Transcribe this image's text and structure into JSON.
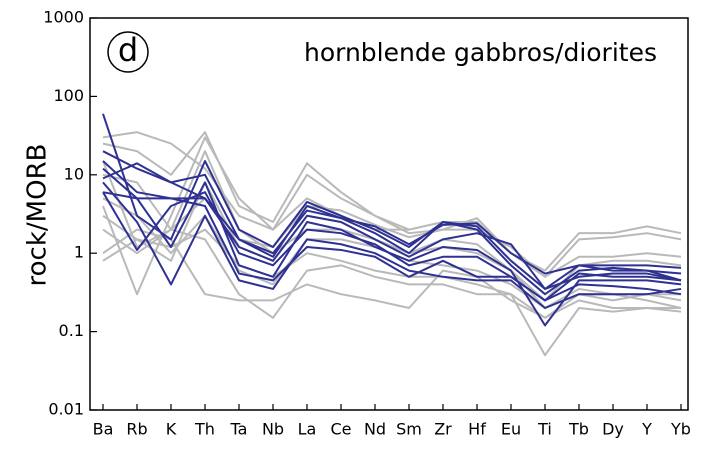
{
  "chart_data": {
    "type": "line",
    "title": "hornblende gabbros/diorites",
    "annotation": "d",
    "y_label": "rock/MORB",
    "yscale": "log",
    "ylim": [
      0.01,
      1000
    ],
    "yticks": [
      0.01,
      0.1,
      1,
      10,
      100,
      1000
    ],
    "categories": [
      "Ba",
      "Rb",
      "K",
      "Th",
      "Ta",
      "Nb",
      "La",
      "Ce",
      "Nd",
      "Sm",
      "Zr",
      "Hf",
      "Eu",
      "Ti",
      "Tb",
      "Dy",
      "Y",
      "Yb"
    ],
    "series": [
      {
        "color": "#b9b9b9",
        "values": [
          30,
          35,
          25,
          12,
          3,
          2,
          10,
          5,
          3,
          2,
          2.5,
          2.5,
          1,
          0.5,
          1.5,
          1.6,
          1.8,
          1.5
        ]
      },
      {
        "color": "#b9b9b9",
        "values": [
          25,
          20,
          10,
          35,
          4,
          2.5,
          14,
          6,
          3,
          1.8,
          2,
          2.8,
          1,
          0.6,
          1.8,
          1.8,
          2.2,
          1.8
        ]
      },
      {
        "color": "#b9b9b9",
        "values": [
          4,
          0.3,
          3,
          30,
          5,
          2,
          5,
          3,
          2,
          2,
          null,
          null,
          null,
          null,
          null,
          null,
          null,
          null
        ]
      },
      {
        "color": "#b9b9b9",
        "values": [
          2,
          1,
          2,
          1.5,
          0.3,
          0.15,
          0.6,
          0.7,
          0.5,
          0.4,
          0.4,
          0.3,
          0.3,
          0.05,
          0.2,
          0.18,
          0.2,
          0.18
        ]
      },
      {
        "color": "#b9b9b9",
        "values": [
          10,
          8,
          2,
          20,
          2,
          1,
          2,
          2,
          1.5,
          1,
          1.2,
          1,
          0.6,
          0.2,
          0.3,
          0.3,
          0.25,
          0.2
        ]
      },
      {
        "color": "#b9b9b9",
        "values": [
          1,
          2,
          1.5,
          0.3,
          0.25,
          0.25,
          0.4,
          0.3,
          0.25,
          0.2,
          0.6,
          0.5,
          0.25,
          0.15,
          0.25,
          0.2,
          0.2,
          0.2
        ]
      },
      {
        "color": "#b9b9b9",
        "values": [
          5,
          3,
          1,
          3,
          0.6,
          0.4,
          1.5,
          1.5,
          1.2,
          0.8,
          0.7,
          0.6,
          0.4,
          0.2,
          0.35,
          0.3,
          0.3,
          0.25
        ]
      },
      {
        "color": "#b9b9b9",
        "values": [
          3,
          1.5,
          0.8,
          8,
          1.2,
          0.8,
          3,
          2.5,
          1.5,
          1,
          1.5,
          1.3,
          0.6,
          0.25,
          0.7,
          0.8,
          0.8,
          0.7
        ]
      },
      {
        "color": "#b9b9b9",
        "values": [
          0.8,
          1.5,
          1.2,
          2,
          0.7,
          0.5,
          1,
          0.8,
          0.6,
          0.5,
          0.5,
          0.4,
          0.3,
          0.15,
          0.3,
          0.25,
          0.3,
          0.3
        ]
      },
      {
        "color": "#b9b9b9",
        "values": [
          15,
          1.2,
          2,
          5,
          1.5,
          1.2,
          4,
          3.5,
          2.3,
          1.6,
          2,
          2,
          1.2,
          0.5,
          0.9,
          0.9,
          1,
          0.9
        ]
      },
      {
        "color": "#2e3192",
        "values": [
          60,
          3,
          1.5,
          15,
          2,
          1.2,
          4.5,
          3,
          2,
          1.2,
          2.5,
          2.2,
          0.8,
          0.35,
          0.7,
          0.7,
          0.7,
          0.65
        ]
      },
      {
        "color": "#2e3192",
        "values": [
          20,
          12,
          8,
          10,
          1.5,
          0.9,
          4,
          2.8,
          1.8,
          1,
          2.5,
          2,
          0.7,
          0.3,
          0.6,
          0.65,
          0.6,
          0.55
        ]
      },
      {
        "color": "#2e3192",
        "values": [
          9,
          14,
          8,
          5,
          1.2,
          0.8,
          3,
          2.5,
          1.5,
          0.9,
          1.5,
          1.8,
          1.3,
          0.35,
          0.5,
          0.55,
          0.55,
          0.45
        ]
      },
      {
        "color": "#2e3192",
        "values": [
          12,
          5,
          1.2,
          8,
          0.7,
          0.5,
          2.5,
          2,
          1.2,
          0.8,
          1.2,
          1.1,
          0.6,
          0.12,
          0.45,
          0.45,
          0.45,
          0.4
        ]
      },
      {
        "color": "#2e3192",
        "values": [
          6,
          1.1,
          4,
          6,
          1,
          0.7,
          2,
          1.8,
          1.3,
          0.7,
          0.9,
          0.9,
          0.5,
          0.25,
          0.4,
          0.38,
          0.35,
          0.3
        ]
      },
      {
        "color": "#2e3192",
        "values": [
          8,
          2.5,
          0.4,
          3,
          0.45,
          0.35,
          1.5,
          1.3,
          1,
          0.6,
          0.5,
          0.45,
          0.45,
          0.2,
          0.3,
          0.3,
          0.3,
          0.35
        ]
      },
      {
        "color": "#2e3192",
        "values": [
          15,
          6,
          5,
          4,
          0.55,
          0.45,
          1.2,
          1.1,
          0.9,
          0.5,
          0.8,
          0.5,
          0.5,
          0.25,
          0.55,
          0.5,
          0.5,
          0.45
        ]
      },
      {
        "color": "#2e3192",
        "values": [
          6,
          5,
          5,
          5,
          1.5,
          1,
          3.5,
          2.8,
          2.2,
          1.3,
          2.3,
          2.4,
          1,
          0.55,
          0.7,
          0.6,
          0.6,
          0.45
        ]
      }
    ]
  }
}
